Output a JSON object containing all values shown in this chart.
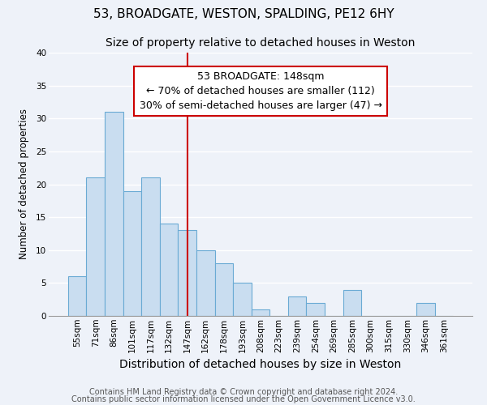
{
  "title": "53, BROADGATE, WESTON, SPALDING, PE12 6HY",
  "subtitle": "Size of property relative to detached houses in Weston",
  "xlabel": "Distribution of detached houses by size in Weston",
  "ylabel": "Number of detached properties",
  "bar_labels": [
    "55sqm",
    "71sqm",
    "86sqm",
    "101sqm",
    "117sqm",
    "132sqm",
    "147sqm",
    "162sqm",
    "178sqm",
    "193sqm",
    "208sqm",
    "223sqm",
    "239sqm",
    "254sqm",
    "269sqm",
    "285sqm",
    "300sqm",
    "315sqm",
    "330sqm",
    "346sqm",
    "361sqm"
  ],
  "bar_heights": [
    6,
    21,
    31,
    19,
    21,
    14,
    13,
    10,
    8,
    5,
    1,
    0,
    3,
    2,
    0,
    4,
    0,
    0,
    0,
    2,
    0
  ],
  "bar_color": "#c9ddf0",
  "bar_edge_color": "#6aaad4",
  "vline_idx": 6,
  "vline_color": "#cc0000",
  "annotation_title": "53 BROADGATE: 148sqm",
  "annotation_line1": "← 70% of detached houses are smaller (112)",
  "annotation_line2": "30% of semi-detached houses are larger (47) →",
  "box_edge_color": "#cc0000",
  "ylim": [
    0,
    40
  ],
  "yticks": [
    0,
    5,
    10,
    15,
    20,
    25,
    30,
    35,
    40
  ],
  "footer1": "Contains HM Land Registry data © Crown copyright and database right 2024.",
  "footer2": "Contains public sector information licensed under the Open Government Licence v3.0.",
  "bg_color": "#eef2f9",
  "plot_bg_color": "#eef2f9",
  "grid_color": "#ffffff",
  "title_fontsize": 11,
  "subtitle_fontsize": 10,
  "xlabel_fontsize": 10,
  "ylabel_fontsize": 8.5,
  "tick_fontsize": 7.5,
  "ann_fontsize": 9,
  "footer_fontsize": 7
}
